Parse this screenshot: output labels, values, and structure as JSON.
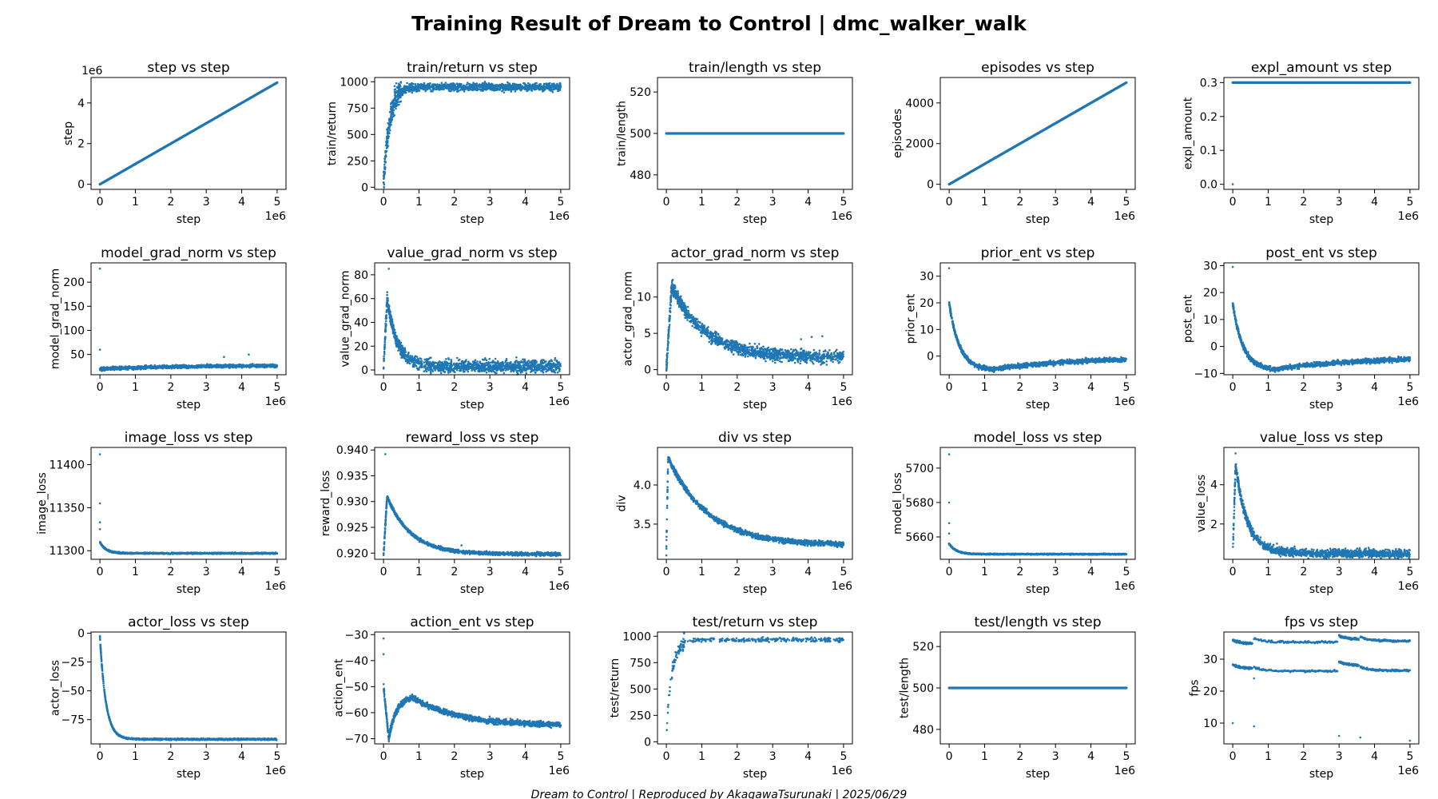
{
  "figure": {
    "title": "Training Result of Dream to Control | dmc_walker_walk",
    "footer": "Dream to Control | Reproduced by AkagawaTsurunaki | 2025/06/29",
    "series_color": "#1f77b4"
  },
  "chart_data": [
    {
      "type": "scatter",
      "title": "step vs step",
      "xlabel": "step",
      "ylabel": "step",
      "x_multiplier": "1e6",
      "y_multiplier": "1e6",
      "xlim": [
        -0.25,
        5.25
      ],
      "ylim": [
        -0.25,
        5.25
      ],
      "yticks": [
        0,
        2,
        4
      ],
      "shape": "linear",
      "params": {
        "y0": 0,
        "y1": 5
      },
      "xticks": [
        0,
        1,
        2,
        3,
        4,
        5
      ]
    },
    {
      "type": "scatter",
      "title": "train/return vs step",
      "xlabel": "step",
      "ylabel": "train/return",
      "x_multiplier": "1e6",
      "xlim": [
        -0.25,
        5.25
      ],
      "ylim": [
        -20,
        1040
      ],
      "yticks": [
        0,
        250,
        500,
        750,
        1000
      ],
      "shape": "riseplateau",
      "params": {
        "start": 30,
        "plateau": 950,
        "k": 6,
        "noise": 35
      },
      "xticks": [
        0,
        1,
        2,
        3,
        4,
        5
      ]
    },
    {
      "type": "scatter",
      "title": "train/length vs step",
      "xlabel": "step",
      "ylabel": "train/length",
      "x_multiplier": "1e6",
      "xlim": [
        -0.25,
        5.25
      ],
      "ylim": [
        473,
        527
      ],
      "yticks": [
        480,
        500,
        520
      ],
      "shape": "constant",
      "params": {
        "value": 500
      },
      "xticks": [
        0,
        1,
        2,
        3,
        4,
        5
      ]
    },
    {
      "type": "scatter",
      "title": "episodes vs step",
      "xlabel": "step",
      "ylabel": "episodes",
      "x_multiplier": "1e6",
      "xlim": [
        -0.25,
        5.25
      ],
      "ylim": [
        -250,
        5250
      ],
      "yticks": [
        0,
        2000,
        4000
      ],
      "shape": "linear",
      "params": {
        "y0": 0,
        "y1": 5000
      },
      "xticks": [
        0,
        1,
        2,
        3,
        4,
        5
      ]
    },
    {
      "type": "scatter",
      "title": "expl_amount vs step",
      "xlabel": "step",
      "ylabel": "expl_amount",
      "x_multiplier": "1e6",
      "xlim": [
        -0.25,
        5.25
      ],
      "ylim": [
        -0.015,
        0.315
      ],
      "yticks": [
        0.0,
        0.1,
        0.2,
        0.3
      ],
      "ytick_decimals": 1,
      "shape": "constant",
      "params": {
        "value": 0.3
      },
      "outliers": [
        [
          0,
          0
        ]
      ],
      "xticks": [
        0,
        1,
        2,
        3,
        4,
        5
      ]
    },
    {
      "type": "scatter",
      "title": "model_grad_norm vs step",
      "xlabel": "step",
      "ylabel": "model_grad_norm",
      "x_multiplier": "1e6",
      "xlim": [
        -0.25,
        5.25
      ],
      "ylim": [
        8,
        240
      ],
      "yticks": [
        50,
        100,
        150,
        200
      ],
      "shape": "trend",
      "params": {
        "a": 20,
        "b": 27,
        "noise": 3
      },
      "outliers": [
        [
          0,
          228
        ],
        [
          0,
          60
        ],
        [
          3.5,
          45
        ],
        [
          4.2,
          50
        ]
      ],
      "xticks": [
        0,
        1,
        2,
        3,
        4,
        5
      ]
    },
    {
      "type": "scatter",
      "title": "value_grad_norm vs step",
      "xlabel": "step",
      "ylabel": "value_grad_norm",
      "x_multiplier": "1e6",
      "xlim": [
        -0.25,
        5.25
      ],
      "ylim": [
        -4,
        90
      ],
      "yticks": [
        0,
        20,
        40,
        60,
        80
      ],
      "shape": "spikedecay",
      "params": {
        "base": 3,
        "peak": 60,
        "tpeak": 0.1,
        "k": 3.5,
        "start": 1,
        "noise": 5
      },
      "outliers": [
        [
          0.15,
          85
        ],
        [
          2.95,
          0
        ]
      ],
      "xticks": [
        0,
        1,
        2,
        3,
        4,
        5
      ]
    },
    {
      "type": "scatter",
      "title": "actor_grad_norm vs step",
      "xlabel": "step",
      "ylabel": "actor_grad_norm",
      "x_multiplier": "1e6",
      "xlim": [
        -0.25,
        5.25
      ],
      "ylim": [
        -0.7,
        14.7
      ],
      "yticks": [
        0,
        5,
        10
      ],
      "shape": "spikedecay",
      "params": {
        "base": 1.7,
        "peak": 11.5,
        "tpeak": 0.15,
        "k": 1.1,
        "start": 0.2,
        "noise": 0.8
      },
      "outliers": [
        [
          4.1,
          4.5
        ],
        [
          4.4,
          4.6
        ],
        [
          3.8,
          4.2
        ]
      ],
      "xticks": [
        0,
        1,
        2,
        3,
        4,
        5
      ]
    },
    {
      "type": "scatter",
      "title": "prior_ent vs step",
      "xlabel": "step",
      "ylabel": "prior_ent",
      "x_multiplier": "1e6",
      "xlim": [
        -0.25,
        5.25
      ],
      "ylim": [
        -7,
        35
      ],
      "yticks": [
        0,
        10,
        20,
        30
      ],
      "shape": "dip",
      "params": {
        "start": 20,
        "k": 3.5,
        "low": -5,
        "tlow": 1.2,
        "end": -0.5,
        "noise": 0.8
      },
      "outliers": [
        [
          0,
          33
        ]
      ],
      "xticks": [
        0,
        1,
        2,
        3,
        4,
        5
      ]
    },
    {
      "type": "scatter",
      "title": "post_ent vs step",
      "xlabel": "step",
      "ylabel": "post_ent",
      "x_multiplier": "1e6",
      "xlim": [
        -0.25,
        5.25
      ],
      "ylim": [
        -10.5,
        31
      ],
      "yticks": [
        -10,
        0,
        10,
        20,
        30
      ],
      "shape": "dip",
      "params": {
        "start": 16,
        "k": 3.5,
        "low": -8.5,
        "tlow": 1.2,
        "end": -4,
        "noise": 0.8
      },
      "outliers": [
        [
          0,
          29.5
        ]
      ],
      "xticks": [
        0,
        1,
        2,
        3,
        4,
        5
      ]
    },
    {
      "type": "scatter",
      "title": "image_loss vs step",
      "xlabel": "step",
      "ylabel": "image_loss",
      "x_multiplier": "1e6",
      "xlim": [
        -0.25,
        5.25
      ],
      "ylim": [
        11290,
        11420
      ],
      "yticks": [
        11300,
        11350,
        11400
      ],
      "shape": "decay",
      "params": {
        "start": 11310,
        "end": 11297,
        "k": 6,
        "noise": 0.7
      },
      "outliers": [
        [
          0,
          11412
        ],
        [
          0,
          11355
        ],
        [
          0,
          11333
        ],
        [
          0,
          11325
        ]
      ],
      "xticks": [
        0,
        1,
        2,
        3,
        4,
        5
      ]
    },
    {
      "type": "scatter",
      "title": "reward_loss vs step",
      "xlabel": "step",
      "ylabel": "reward_loss",
      "x_multiplier": "1e6",
      "xlim": [
        -0.25,
        5.25
      ],
      "ylim": [
        0.9188,
        0.9405
      ],
      "yticks": [
        0.92,
        0.925,
        0.93,
        0.935,
        0.94
      ],
      "ytick_decimals": 3,
      "shape": "spikedecay",
      "params": {
        "base": 0.9198,
        "peak": 0.931,
        "tpeak": 0.1,
        "k": 1.5,
        "start": 0.9195,
        "noise": 0.0003
      },
      "outliers": [
        [
          0.05,
          0.9392
        ],
        [
          2.2,
          0.9215
        ]
      ],
      "xticks": [
        0,
        1,
        2,
        3,
        4,
        5
      ]
    },
    {
      "type": "scatter",
      "title": "div vs step",
      "xlabel": "step",
      "ylabel": "div",
      "x_multiplier": "1e6",
      "xlim": [
        -0.25,
        5.25
      ],
      "ylim": [
        3.05,
        4.48
      ],
      "yticks": [
        3.5,
        4.0
      ],
      "ytick_decimals": 1,
      "shape": "spikedecay",
      "params": {
        "base": 3.23,
        "peak": 4.35,
        "tpeak": 0.05,
        "k": 0.9,
        "start": 3.15,
        "noise": 0.03
      },
      "outliers": [
        [
          0.0,
          3.1
        ]
      ],
      "xticks": [
        0,
        1,
        2,
        3,
        4,
        5
      ]
    },
    {
      "type": "scatter",
      "title": "model_loss vs step",
      "xlabel": "step",
      "ylabel": "model_loss",
      "x_multiplier": "1e6",
      "xlim": [
        -0.25,
        5.25
      ],
      "ylim": [
        5647,
        5712
      ],
      "yticks": [
        5660,
        5680,
        5700
      ],
      "shape": "decay",
      "params": {
        "start": 5656,
        "end": 5650,
        "k": 5,
        "noise": 0.3
      },
      "outliers": [
        [
          0,
          5708
        ],
        [
          0,
          5680
        ],
        [
          0,
          5668
        ],
        [
          0,
          5662
        ]
      ],
      "xticks": [
        0,
        1,
        2,
        3,
        4,
        5
      ]
    },
    {
      "type": "scatter",
      "title": "value_loss vs step",
      "xlabel": "step",
      "ylabel": "value_loss",
      "x_multiplier": "1e6",
      "xlim": [
        -0.25,
        5.25
      ],
      "ylim": [
        0.2,
        5.9
      ],
      "yticks": [
        2,
        4
      ],
      "shape": "spikedecay",
      "params": {
        "base": 0.5,
        "peak": 5.0,
        "tpeak": 0.08,
        "k": 3,
        "start": 0.5,
        "noise": 0.2
      },
      "outliers": [
        [
          0.08,
          5.6
        ],
        [
          1.25,
          1.0
        ]
      ],
      "xticks": [
        0,
        1,
        2,
        3,
        4,
        5
      ]
    },
    {
      "type": "scatter",
      "title": "actor_loss vs step",
      "xlabel": "step",
      "ylabel": "actor_loss",
      "x_multiplier": "1e6",
      "xlim": [
        -0.25,
        5.25
      ],
      "ylim": [
        -96,
        1
      ],
      "yticks": [
        0,
        -25,
        -50,
        -75
      ],
      "shape": "decay",
      "params": {
        "start": -3,
        "end": -92,
        "k": 6,
        "noise": 0.6
      },
      "xticks": [
        0,
        1,
        2,
        3,
        4,
        5
      ]
    },
    {
      "type": "scatter",
      "title": "action_ent vs step",
      "xlabel": "step",
      "ylabel": "action_ent",
      "x_multiplier": "1e6",
      "xlim": [
        -0.25,
        5.25
      ],
      "ylim": [
        -72,
        -29
      ],
      "yticks": [
        -30,
        -40,
        -50,
        -60,
        -70
      ],
      "shape": "action",
      "params": {
        "noise": 1.0
      },
      "outliers": [
        [
          0,
          -31.5
        ],
        [
          0,
          -37.5
        ]
      ],
      "xticks": [
        0,
        1,
        2,
        3,
        4,
        5
      ]
    },
    {
      "type": "scatter",
      "title": "test/return vs step",
      "xlabel": "step",
      "ylabel": "test/return",
      "x_multiplier": "1e6",
      "xlim": [
        -0.25,
        5.25
      ],
      "ylim": [
        -20,
        1040
      ],
      "yticks": [
        0,
        250,
        500,
        750,
        1000
      ],
      "shape": "riseplateau",
      "params": {
        "start": 20,
        "plateau": 965,
        "k": 7,
        "noise": 20
      },
      "sparse": true,
      "xticks": [
        0,
        1,
        2,
        3,
        4,
        5
      ]
    },
    {
      "type": "scatter",
      "title": "test/length vs step",
      "xlabel": "step",
      "ylabel": "test/length",
      "x_multiplier": "1e6",
      "xlim": [
        -0.25,
        5.25
      ],
      "ylim": [
        473,
        527
      ],
      "yticks": [
        480,
        500,
        520
      ],
      "shape": "constant",
      "params": {
        "value": 500
      },
      "xticks": [
        0,
        1,
        2,
        3,
        4,
        5
      ]
    },
    {
      "type": "scatter",
      "title": "fps vs step",
      "xlabel": "step",
      "ylabel": "fps",
      "x_multiplier": "1e6",
      "xlim": [
        -0.25,
        5.25
      ],
      "ylim": [
        3.5,
        38.5
      ],
      "yticks": [
        10,
        20,
        30
      ],
      "shape": "fps",
      "params": {
        "noise": 0.3
      },
      "outliers": [
        [
          0,
          10
        ],
        [
          0.6,
          9
        ],
        [
          3,
          6
        ],
        [
          3.6,
          5.5
        ],
        [
          5,
          4.5
        ],
        [
          0.6,
          24
        ]
      ],
      "xticks": [
        0,
        1,
        2,
        3,
        4,
        5
      ]
    }
  ]
}
